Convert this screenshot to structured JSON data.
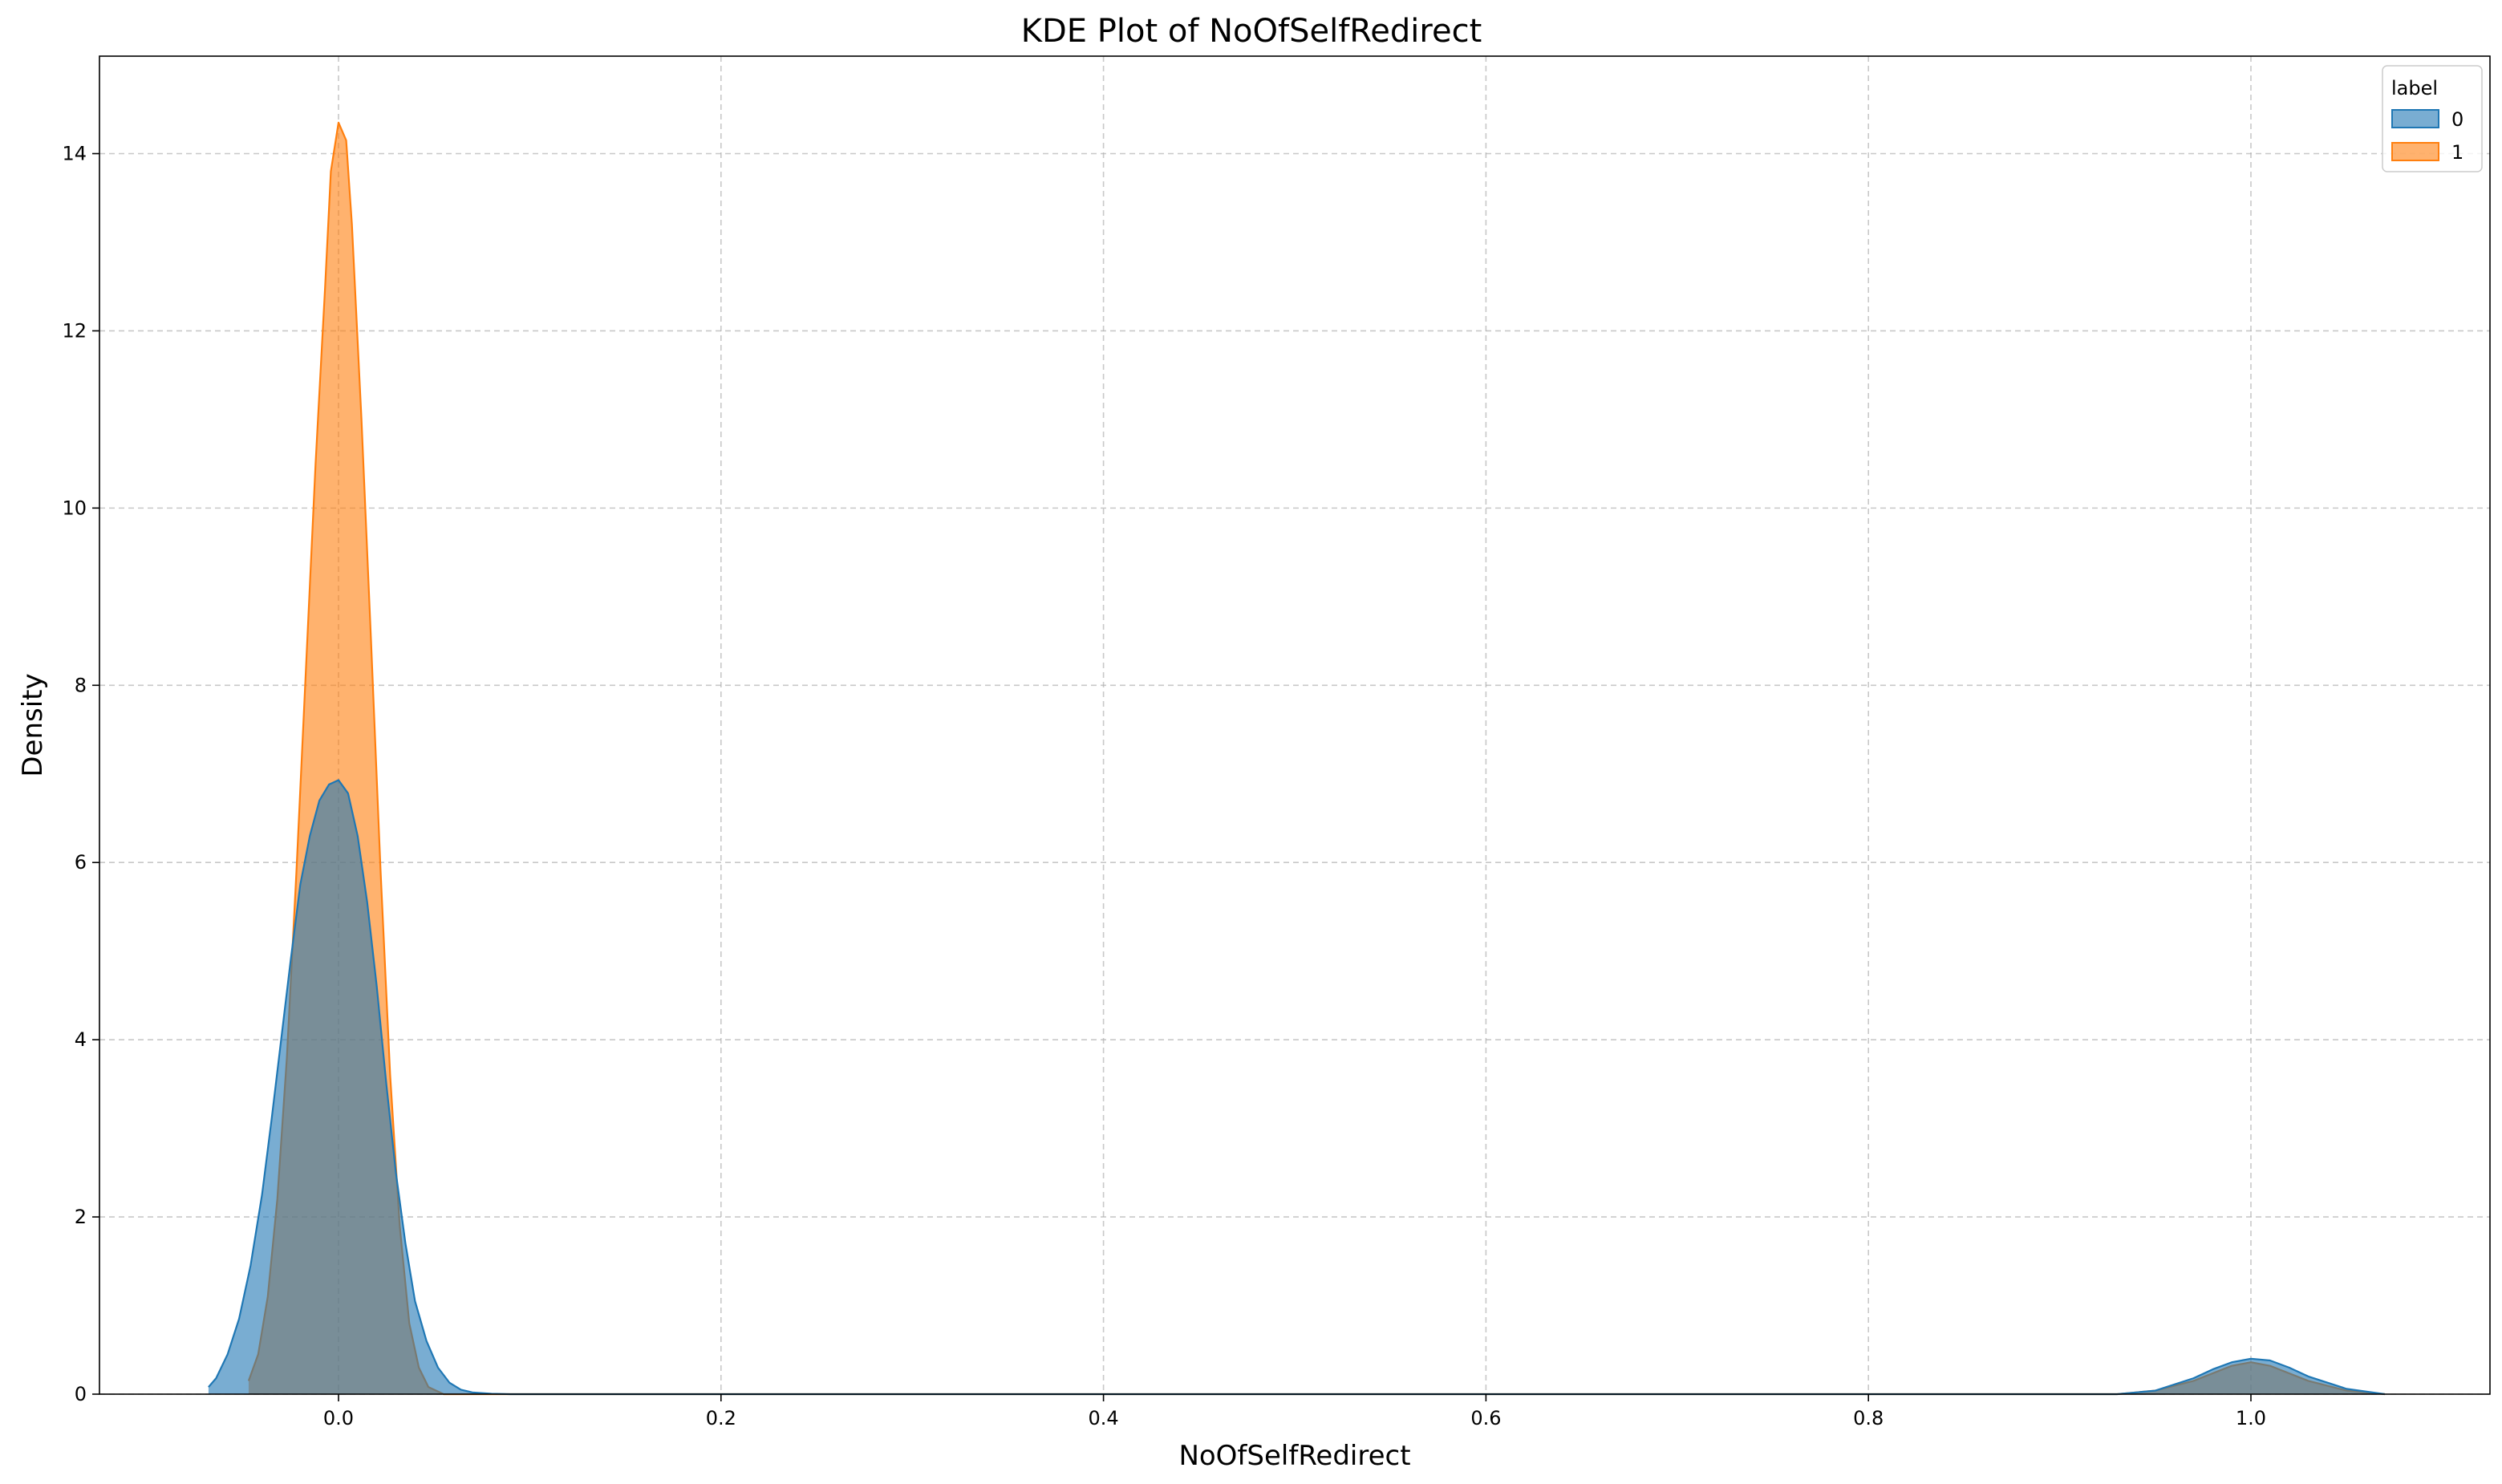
{
  "chart_data": {
    "type": "area",
    "title": "KDE Plot of NoOfSelfRedirect",
    "xlabel": "NoOfSelfRedirect",
    "ylabel": "Density",
    "xlim": [
      -0.125,
      1.125
    ],
    "ylim": [
      0,
      15.1
    ],
    "xticks": [
      0.0,
      0.2,
      0.4,
      0.6,
      0.8,
      1.0
    ],
    "xtick_labels": [
      "0.0",
      "0.2",
      "0.4",
      "0.6",
      "0.8",
      "1.0"
    ],
    "yticks": [
      0,
      2,
      4,
      6,
      8,
      10,
      12,
      14
    ],
    "ytick_labels": [
      "0",
      "2",
      "4",
      "6",
      "8",
      "10",
      "12",
      "14"
    ],
    "grid": true,
    "legend": {
      "title": "label",
      "position": "top-right"
    },
    "series": [
      {
        "name": "0",
        "color": "#1f77b4",
        "fill_opacity": 0.6,
        "x": [
          -0.068,
          -0.064,
          -0.058,
          -0.052,
          -0.046,
          -0.04,
          -0.035,
          -0.03,
          -0.025,
          -0.02,
          -0.015,
          -0.01,
          -0.005,
          0.0,
          0.005,
          0.01,
          0.015,
          0.02,
          0.025,
          0.03,
          0.035,
          0.04,
          0.046,
          0.052,
          0.058,
          0.064,
          0.07,
          0.08,
          0.09,
          0.1,
          0.93,
          0.95,
          0.97,
          0.98,
          0.99,
          1.0,
          1.01,
          1.02,
          1.03,
          1.05,
          1.07
        ],
        "y": [
          0.08,
          0.18,
          0.45,
          0.85,
          1.45,
          2.25,
          3.1,
          4.0,
          4.9,
          5.75,
          6.3,
          6.7,
          6.88,
          6.93,
          6.78,
          6.3,
          5.55,
          4.6,
          3.5,
          2.5,
          1.7,
          1.05,
          0.6,
          0.3,
          0.13,
          0.05,
          0.02,
          0.005,
          0.0,
          0.0,
          0.0,
          0.04,
          0.18,
          0.28,
          0.36,
          0.4,
          0.38,
          0.3,
          0.2,
          0.06,
          0.0
        ]
      },
      {
        "name": "1",
        "color": "#ff7f0e",
        "fill_opacity": 0.6,
        "x": [
          -0.047,
          -0.042,
          -0.037,
          -0.032,
          -0.027,
          -0.022,
          -0.017,
          -0.012,
          -0.007,
          -0.004,
          0.0,
          0.004,
          0.007,
          0.012,
          0.017,
          0.022,
          0.027,
          0.032,
          0.037,
          0.042,
          0.047,
          0.055,
          0.93,
          0.95,
          0.97,
          0.99,
          1.0,
          1.01,
          1.03,
          1.05,
          1.07
        ],
        "y": [
          0.15,
          0.45,
          1.1,
          2.2,
          3.8,
          5.9,
          8.2,
          10.5,
          12.5,
          13.8,
          14.35,
          14.15,
          13.2,
          11.0,
          8.5,
          5.9,
          3.6,
          1.9,
          0.8,
          0.3,
          0.08,
          0.0,
          0.0,
          0.04,
          0.15,
          0.32,
          0.36,
          0.32,
          0.15,
          0.04,
          0.0
        ]
      }
    ]
  }
}
